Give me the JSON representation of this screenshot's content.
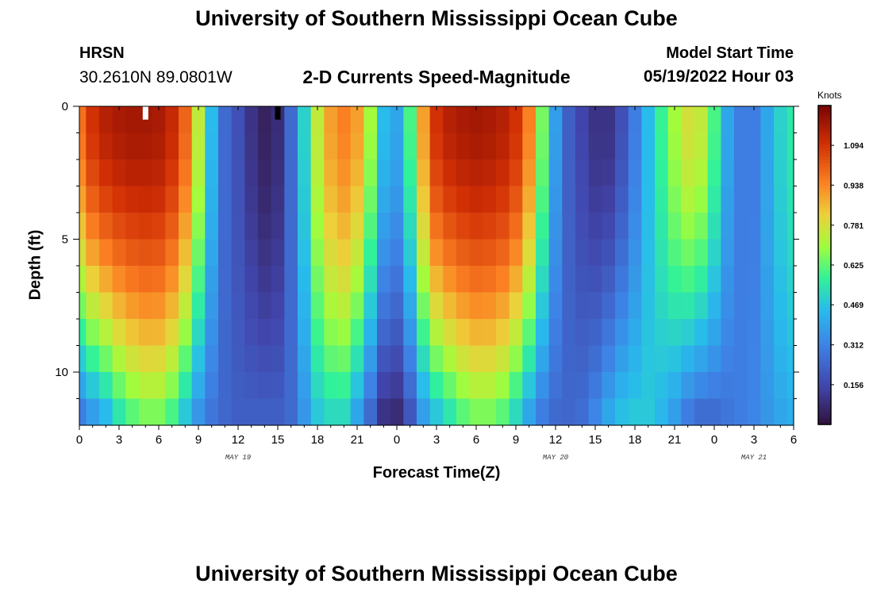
{
  "page": {
    "title": "University of Southern Mississippi Ocean Cube",
    "title_repeat": "University of Southern Mississippi Ocean Cube",
    "station": "HRSN",
    "coords": "30.2610N  89.0801W",
    "subtitle": "2-D Currents Speed-Magnitude",
    "model_start_label": "Model Start Time",
    "model_start_value": "05/19/2022 Hour 03"
  },
  "chart_data": {
    "type": "heatmap",
    "title": "2-D Currents Speed-Magnitude",
    "xlabel": "Forecast Time(Z)",
    "ylabel": "Depth (ft)",
    "x_range_hours": [
      0,
      54
    ],
    "y_range_ft": [
      0,
      12
    ],
    "y_ticks": [
      "0",
      "5",
      "10"
    ],
    "y_tick_values": [
      0,
      5,
      10
    ],
    "x_ticks": [
      "0",
      "3",
      "6",
      "9",
      "12",
      "15",
      "18",
      "21",
      "0",
      "3",
      "6",
      "9",
      "12",
      "15",
      "18",
      "21",
      "0",
      "3",
      "6"
    ],
    "x_tick_hours": [
      0,
      3,
      6,
      9,
      12,
      15,
      18,
      21,
      24,
      27,
      30,
      33,
      36,
      39,
      42,
      45,
      48,
      51,
      54
    ],
    "date_labels": [
      {
        "text": "MAY 19",
        "hour": 12
      },
      {
        "text": "MAY 20",
        "hour": 36
      },
      {
        "text": "MAY 21",
        "hour": 51
      }
    ],
    "colorbar": {
      "title": "Knots",
      "ticks": [
        "1.094",
        "0.938",
        "0.781",
        "0.625",
        "0.469",
        "0.312",
        "0.156"
      ],
      "tick_values": [
        1.094,
        0.938,
        0.781,
        0.625,
        0.469,
        0.312,
        0.156
      ],
      "range": [
        0.0,
        1.25
      ]
    },
    "surface_speed_knots": [
      0.98,
      1.1,
      1.15,
      1.17,
      1.18,
      1.18,
      1.17,
      1.12,
      1.0,
      0.75,
      0.45,
      0.25,
      0.18,
      0.1,
      0.05,
      0.08,
      0.25,
      0.5,
      0.75,
      0.9,
      0.95,
      0.9,
      0.7,
      0.45,
      0.4,
      0.6,
      0.9,
      1.1,
      1.15,
      1.17,
      1.18,
      1.17,
      1.15,
      1.1,
      0.95,
      0.65,
      0.38,
      0.22,
      0.15,
      0.1,
      0.1,
      0.18,
      0.3,
      0.45,
      0.58,
      0.7,
      0.78,
      0.75,
      0.6,
      0.4,
      0.3,
      0.3,
      0.4,
      0.5,
      0.55
    ],
    "deep_speed_knots": [
      0.3,
      0.38,
      0.45,
      0.55,
      0.62,
      0.66,
      0.66,
      0.6,
      0.48,
      0.36,
      0.28,
      0.24,
      0.22,
      0.22,
      0.22,
      0.22,
      0.25,
      0.36,
      0.48,
      0.52,
      0.52,
      0.4,
      0.25,
      0.1,
      0.08,
      0.2,
      0.38,
      0.48,
      0.55,
      0.62,
      0.66,
      0.66,
      0.62,
      0.52,
      0.4,
      0.3,
      0.25,
      0.24,
      0.26,
      0.32,
      0.4,
      0.46,
      0.48,
      0.48,
      0.44,
      0.38,
      0.3,
      0.26,
      0.26,
      0.28,
      0.3,
      0.32,
      0.36,
      0.4,
      0.42
    ],
    "depth_profile_exponent": 1.6,
    "depth_levels": 12,
    "markers": [
      {
        "hour": 5,
        "depth_ft": 0.25,
        "color": "#ffffff"
      },
      {
        "hour": 15,
        "depth_ft": 0.25,
        "color": "#000000"
      }
    ]
  }
}
